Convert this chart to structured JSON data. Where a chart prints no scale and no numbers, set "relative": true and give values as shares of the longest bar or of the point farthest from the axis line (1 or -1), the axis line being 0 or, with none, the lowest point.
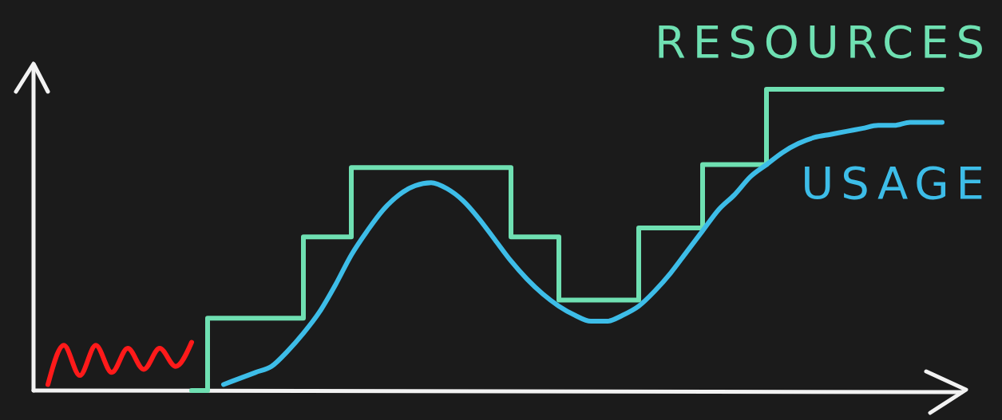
{
  "chart_data": {
    "type": "line",
    "relative": true,
    "categories": [
      null,
      null,
      null,
      null,
      null,
      null,
      null,
      null,
      null,
      null,
      null,
      null,
      null,
      null,
      null,
      null,
      null,
      null,
      null,
      null,
      null,
      null,
      null,
      null,
      null,
      null,
      null,
      null,
      null,
      null,
      null,
      null,
      null,
      null,
      null,
      null,
      null,
      null,
      null,
      null,
      null,
      null,
      null,
      null,
      null,
      null,
      null,
      null,
      null,
      null,
      null,
      null,
      null,
      null,
      null,
      null,
      null,
      null
    ],
    "series": [
      {
        "type": "line",
        "color": "#ff1a1a",
        "values": [
          null,
          0.02,
          0.15,
          0.05,
          0.15,
          0.06,
          0.14,
          0.07,
          0.14,
          0.08,
          0.16,
          null,
          null,
          null,
          null,
          null,
          null,
          null,
          null,
          null,
          null,
          null,
          null,
          null,
          null,
          null,
          null,
          null,
          null,
          null,
          null,
          null,
          null,
          null,
          null,
          null,
          null,
          null,
          null,
          null,
          null,
          null,
          null,
          null,
          null,
          null,
          null,
          null,
          null,
          null,
          null,
          null,
          null,
          null,
          null,
          null,
          null,
          null
        ]
      },
      {
        "name": "RESOURCES",
        "type": "step",
        "color": "#6fe0b2",
        "values": [
          null,
          null,
          null,
          null,
          null,
          null,
          null,
          null,
          null,
          null,
          0,
          0.24,
          0.24,
          0.24,
          0.24,
          0.24,
          0.24,
          0.51,
          0.51,
          0.51,
          0.74,
          0.74,
          0.74,
          0.74,
          0.74,
          0.74,
          0.74,
          0.74,
          0.74,
          0.74,
          0.51,
          0.51,
          0.51,
          0.3,
          0.3,
          0.3,
          0.3,
          0.3,
          0.54,
          0.54,
          0.54,
          0.54,
          0.75,
          0.75,
          0.75,
          0.75,
          1,
          1,
          1,
          1,
          1,
          1,
          1,
          1,
          1,
          1,
          1,
          1
        ]
      },
      {
        "name": "USAGE",
        "type": "line",
        "color": "#3dbde8",
        "values": [
          null,
          null,
          null,
          null,
          null,
          null,
          null,
          null,
          null,
          null,
          null,
          null,
          0.02,
          0.04,
          0.06,
          0.08,
          0.13,
          0.19,
          0.26,
          0.35,
          0.45,
          0.53,
          0.6,
          0.65,
          0.68,
          0.69,
          0.67,
          0.63,
          0.57,
          0.5,
          0.43,
          0.37,
          0.32,
          0.28,
          0.25,
          0.23,
          0.23,
          0.25,
          0.28,
          0.33,
          0.39,
          0.46,
          0.53,
          0.6,
          0.65,
          0.71,
          0.75,
          0.79,
          0.82,
          0.84,
          0.85,
          0.86,
          0.87,
          0.88,
          0.88,
          0.89,
          0.89,
          0.89
        ]
      }
    ]
  }
}
